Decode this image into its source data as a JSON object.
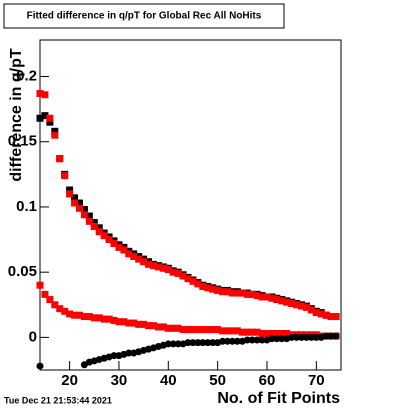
{
  "chart_data": {
    "type": "scatter",
    "title": "Fitted difference in q/pT for Global Rec All NoHits",
    "x_label": "No. of Fit Points",
    "y_label": "difference in q/pT",
    "timestamp": "Tue Dec 21 21:53:44 2021",
    "xlim": [
      14,
      75
    ],
    "ylim": [
      -0.025,
      0.228
    ],
    "xticks": [
      20,
      30,
      40,
      50,
      60,
      70
    ],
    "yticks": [
      0,
      0.05,
      0.1,
      0.15,
      0.2
    ],
    "x": [
      14,
      15,
      16,
      17,
      18,
      19,
      20,
      21,
      22,
      23,
      24,
      25,
      26,
      27,
      28,
      29,
      30,
      31,
      32,
      33,
      34,
      35,
      36,
      37,
      38,
      39,
      40,
      41,
      42,
      43,
      44,
      45,
      46,
      47,
      48,
      49,
      50,
      51,
      52,
      53,
      54,
      55,
      56,
      57,
      58,
      59,
      60,
      61,
      62,
      63,
      64,
      65,
      66,
      67,
      68,
      69,
      70,
      71,
      72,
      73,
      74
    ],
    "series": [
      {
        "color": "#000000",
        "marker": "square",
        "values": [
          0.168,
          0.17,
          0.165,
          0.158,
          0.137,
          0.125,
          0.113,
          0.107,
          0.103,
          0.098,
          0.093,
          0.088,
          0.084,
          0.08,
          0.077,
          0.074,
          0.071,
          0.069,
          0.066,
          0.064,
          0.062,
          0.06,
          0.058,
          0.056,
          0.055,
          0.054,
          0.053,
          0.051,
          0.05,
          0.048,
          0.046,
          0.044,
          0.042,
          0.04,
          0.039,
          0.038,
          0.037,
          0.036,
          0.036,
          0.035,
          0.035,
          0.034,
          0.034,
          0.033,
          0.033,
          0.032,
          0.031,
          0.031,
          0.03,
          0.029,
          0.028,
          0.027,
          0.026,
          0.025,
          0.024,
          0.022,
          0.02,
          0.019,
          0.017,
          0.016,
          0.016
        ]
      },
      {
        "color": "#ff0000",
        "marker": "square",
        "values": [
          0.187,
          0.186,
          0.168,
          0.155,
          0.137,
          0.124,
          0.11,
          0.103,
          0.099,
          0.094,
          0.089,
          0.085,
          0.081,
          0.078,
          0.075,
          0.072,
          0.069,
          0.067,
          0.064,
          0.062,
          0.06,
          0.058,
          0.056,
          0.055,
          0.054,
          0.053,
          0.052,
          0.05,
          0.049,
          0.047,
          0.045,
          0.043,
          0.041,
          0.039,
          0.038,
          0.037,
          0.036,
          0.035,
          0.035,
          0.034,
          0.034,
          0.034,
          0.033,
          0.033,
          0.032,
          0.031,
          0.031,
          0.03,
          0.029,
          0.028,
          0.027,
          0.026,
          0.025,
          0.024,
          0.023,
          0.021,
          0.019,
          0.018,
          0.017,
          0.016,
          0.016
        ]
      },
      {
        "color": "#ff0000",
        "marker": "square",
        "values": [
          0.04,
          0.033,
          0.029,
          0.025,
          0.022,
          0.02,
          0.018,
          0.017,
          0.017,
          0.016,
          0.016,
          0.015,
          0.015,
          0.014,
          0.014,
          0.013,
          0.012,
          0.012,
          0.011,
          0.011,
          0.01,
          0.01,
          0.009,
          0.009,
          0.008,
          0.008,
          0.007,
          0.007,
          0.007,
          0.006,
          0.006,
          0.006,
          0.006,
          0.006,
          0.006,
          0.006,
          0.006,
          0.005,
          0.005,
          0.005,
          0.005,
          0.004,
          0.004,
          0.004,
          0.004,
          0.003,
          0.003,
          0.003,
          0.003,
          0.003,
          0.003,
          0.002,
          0.002,
          0.002,
          0.002,
          0.002,
          0.002,
          0.001,
          0.001,
          0.001,
          0.001
        ]
      },
      {
        "color": "#000000",
        "marker": "circle",
        "values": [
          -0.022,
          null,
          null,
          null,
          null,
          null,
          null,
          null,
          null,
          -0.021,
          -0.019,
          -0.018,
          -0.017,
          -0.016,
          -0.015,
          -0.014,
          -0.014,
          -0.013,
          -0.012,
          -0.012,
          -0.011,
          -0.01,
          -0.009,
          -0.008,
          -0.007,
          -0.006,
          -0.005,
          -0.005,
          -0.005,
          -0.005,
          -0.004,
          -0.004,
          -0.004,
          -0.004,
          -0.004,
          -0.004,
          -0.004,
          -0.003,
          -0.003,
          -0.003,
          -0.003,
          -0.003,
          -0.002,
          -0.002,
          -0.002,
          -0.002,
          -0.002,
          -0.001,
          -0.001,
          -0.001,
          -0.001,
          0,
          0,
          0,
          0,
          0,
          0,
          0,
          0.001,
          0.001,
          0.001
        ]
      }
    ]
  }
}
